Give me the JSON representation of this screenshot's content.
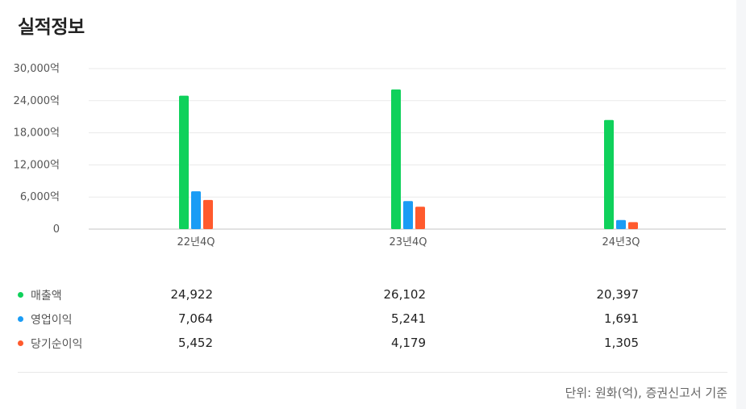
{
  "title": "실적정보",
  "chart_data": {
    "type": "bar",
    "categories": [
      "22년4Q",
      "23년4Q",
      "24년3Q"
    ],
    "series": [
      {
        "name": "매출액",
        "color": "#0fd15b",
        "values": [
          24922,
          26102,
          20397
        ]
      },
      {
        "name": "영업이익",
        "color": "#1a9cf5",
        "values": [
          7064,
          5241,
          1691
        ]
      },
      {
        "name": "당기순이익",
        "color": "#ff5a2d",
        "values": [
          5452,
          4179,
          1305
        ]
      }
    ],
    "y_ticks": [
      "30,000억",
      "24,000억",
      "18,000억",
      "12,000억",
      "6,000억",
      "0"
    ],
    "ylim": [
      0,
      30000
    ],
    "grid": true
  },
  "table": {
    "rows": [
      {
        "label": "매출액",
        "color": "#0fd15b",
        "values": [
          "24,922",
          "26,102",
          "20,397"
        ]
      },
      {
        "label": "영업이익",
        "color": "#1a9cf5",
        "values": [
          "7,064",
          "5,241",
          "1,691"
        ]
      },
      {
        "label": "당기순이익",
        "color": "#ff5a2d",
        "values": [
          "5,452",
          "4,179",
          "1,305"
        ]
      }
    ]
  },
  "unit_note": "단위: 원화(억), 증권신고서 기준"
}
